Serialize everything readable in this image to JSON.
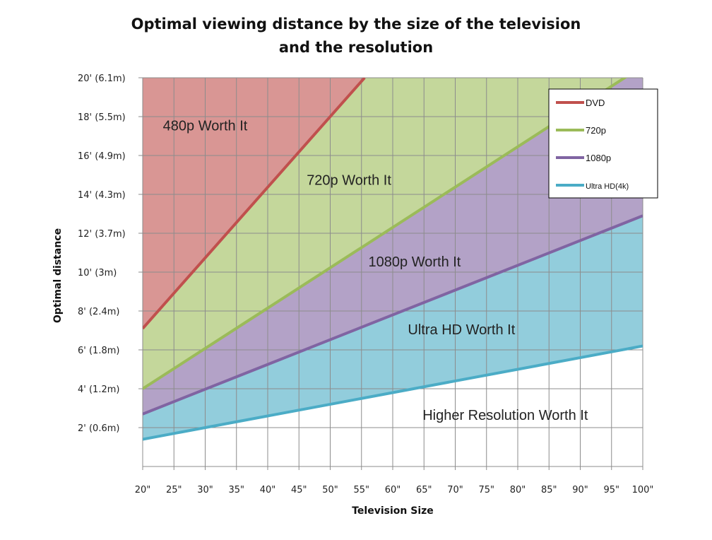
{
  "chart_data": {
    "type": "area",
    "title_lines": [
      "Optimal viewing distance by the size of the television",
      "and the resolution"
    ],
    "xlabel": "Television Size",
    "ylabel": "Optimal distance",
    "x": [
      20,
      100
    ],
    "x_ticks": [
      20,
      25,
      30,
      35,
      40,
      45,
      50,
      55,
      60,
      65,
      70,
      75,
      80,
      85,
      90,
      95,
      100
    ],
    "x_tick_labels": [
      "20\"",
      "25\"",
      "30\"",
      "35\"",
      "40\"",
      "45\"",
      "50\"",
      "55\"",
      "60\"",
      "65\"",
      "70\"",
      "75\"",
      "80\"",
      "85\"",
      "90\"",
      "95\"",
      "100\""
    ],
    "xlim": [
      20,
      100
    ],
    "y_ticks": [
      2,
      4,
      6,
      8,
      10,
      12,
      14,
      16,
      18,
      20
    ],
    "y_tick_labels": [
      "2' (0.6m)",
      "4' (1.2m)",
      "6' (1.8m)",
      "8' (2.4m)",
      "10' (3m)",
      "12' (3.7m)",
      "14' (4.3m)",
      "16' (4.9m)",
      "18' (5.5m)",
      "20' (6.1m)"
    ],
    "ylim": [
      0,
      20
    ],
    "grid": true,
    "legend_position": "top-right",
    "series": [
      {
        "name": "DVD",
        "color": "#c0504d",
        "x": [
          20,
          55.5
        ],
        "y": [
          7.1,
          20
        ]
      },
      {
        "name": "720p",
        "color": "#9bbb59",
        "x": [
          20,
          100
        ],
        "y": [
          4.0,
          20.6
        ]
      },
      {
        "name": "1080p",
        "color": "#8064a2",
        "x": [
          20,
          100
        ],
        "y": [
          2.7,
          12.9
        ]
      },
      {
        "name": "Ultra HD(4k)",
        "color": "#4bacc6",
        "x": [
          20,
          100
        ],
        "y": [
          1.4,
          6.2
        ]
      }
    ],
    "region_labels": [
      {
        "text": "480p Worth It",
        "x": 30,
        "y": 17.3
      },
      {
        "text": "720p Worth It",
        "x": 53,
        "y": 14.5
      },
      {
        "text": "1080p Worth It",
        "x": 63.5,
        "y": 10.3
      },
      {
        "text": "Ultra HD Worth It",
        "x": 71,
        "y": 6.8
      },
      {
        "text": "Higher Resolution Worth It",
        "x": 78,
        "y": 2.4
      }
    ],
    "region_colors": {
      "dvd": "#d99694",
      "p720": "#c4d79b",
      "p1080": "#b3a2c7",
      "uhd": "#92cddc",
      "higher": "#ffffff"
    }
  }
}
